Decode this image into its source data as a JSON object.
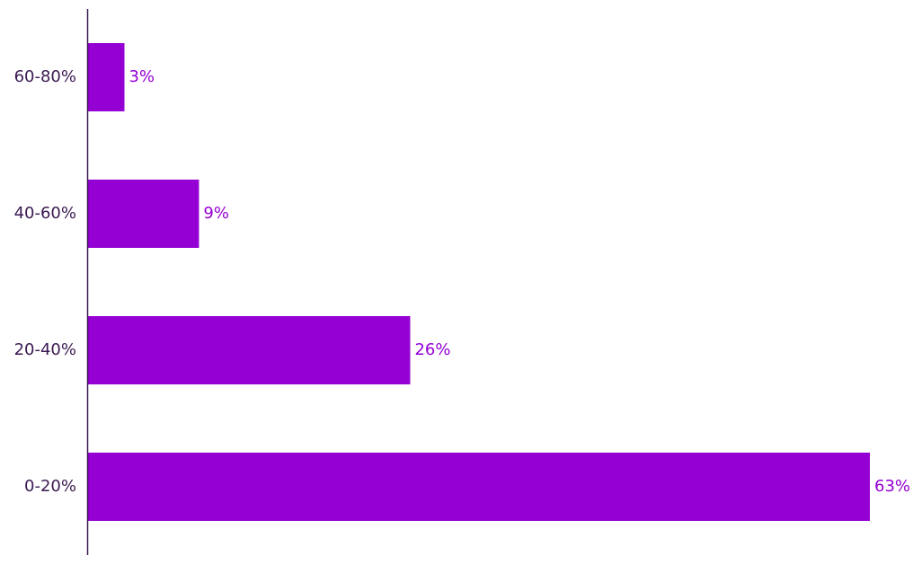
{
  "chart_data": {
    "type": "bar",
    "orientation": "horizontal",
    "categories": [
      "60-80%",
      "40-60%",
      "20-40%",
      "0-20%"
    ],
    "values": [
      3,
      9,
      26,
      63
    ],
    "value_labels": [
      "3%",
      "9%",
      "26%",
      "63%"
    ],
    "title": "",
    "xlabel": "",
    "ylabel": "",
    "xlim": [
      0,
      63
    ],
    "grid": false,
    "legend": "none",
    "bar_color": "#9400d3",
    "value_label_color": "#9400d3",
    "axis_color": "#3a1a52",
    "category_label_color": "#3a1a52"
  }
}
